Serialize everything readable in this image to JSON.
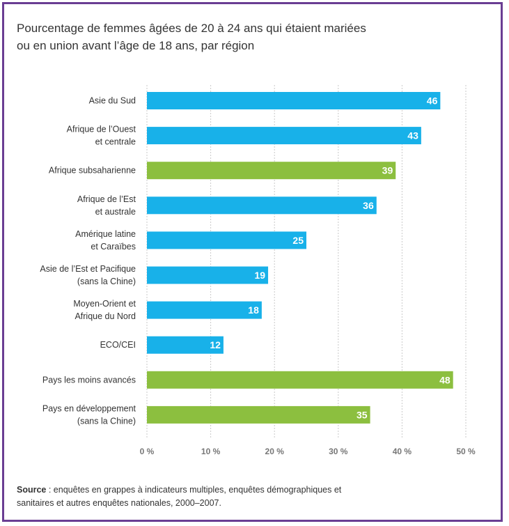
{
  "title": {
    "line1": "Pourcentage de femmes âgées de 20 à 24 ans qui étaient mariées",
    "line2": "ou en union avant l’âge de 18 ans, par région"
  },
  "source": {
    "label": "Source",
    "text_line1": " : enquêtes en grappes à indicateurs multiples, enquêtes démographiques et",
    "text_line2": "sanitaires et autres enquêtes nationales, 2000–2007."
  },
  "colors": {
    "blue": "#18b1e9",
    "green": "#8cbf3f",
    "frame": "#6a3d93"
  },
  "chart_data": {
    "type": "bar",
    "orientation": "horizontal",
    "xlim": [
      0,
      50
    ],
    "x_ticks": [
      "0 %",
      "10 %",
      "20 %",
      "30 %",
      "40 %",
      "50 %"
    ],
    "x_tick_values": [
      0,
      10,
      20,
      30,
      40,
      50
    ],
    "grid": true,
    "categories": [
      [
        "Asie du Sud"
      ],
      [
        "Afrique de l’Ouest",
        "et centrale"
      ],
      [
        "Afrique subsaharienne"
      ],
      [
        "Afrique de l’Est",
        "et australe"
      ],
      [
        "Amérique latine",
        "et Caraïbes"
      ],
      [
        "Asie de l’Est et Pacifique",
        "(sans la Chine)"
      ],
      [
        "Moyen-Orient et",
        "Afrique du Nord"
      ],
      [
        "ECO/CEI"
      ],
      [
        "Pays les moins avancés"
      ],
      [
        "Pays en développement",
        "(sans la Chine)"
      ]
    ],
    "values": [
      46,
      43,
      39,
      36,
      25,
      19,
      18,
      12,
      48,
      35
    ],
    "bar_colors": [
      "blue",
      "blue",
      "green",
      "blue",
      "blue",
      "blue",
      "blue",
      "blue",
      "green",
      "green"
    ]
  }
}
